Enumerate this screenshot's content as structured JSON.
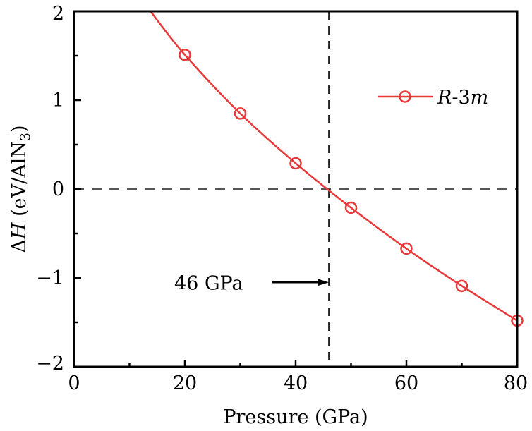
{
  "chart_data": {
    "type": "line",
    "title": "",
    "xlabel": "Pressure (GPa)",
    "ylabel_parts": {
      "delta": "Δ",
      "var": "H",
      "unit": " (eV/AlN",
      "sub": "3",
      "close": ")"
    },
    "ylabel": "ΔH (eV/AlN3)",
    "xlim": [
      0,
      80
    ],
    "ylim": [
      -2,
      2
    ],
    "xticks": [
      0,
      20,
      40,
      60,
      80
    ],
    "xtick_labels": [
      "0",
      "20",
      "40",
      "60",
      "80"
    ],
    "xminor": [
      10,
      30,
      50,
      70
    ],
    "yticks": [
      2,
      1,
      0,
      -1,
      -2
    ],
    "ytick_labels": [
      "2",
      "1",
      "0",
      "−1",
      "−2"
    ],
    "yminor": [
      1.5,
      0.5,
      -0.5,
      -1.5
    ],
    "grid": false,
    "legend_position": "top-right",
    "series": [
      {
        "name": "R-3m",
        "name_parts": {
          "italic1": "R",
          "plain": "-3",
          "italic2": "m"
        },
        "color": "#e8393a",
        "marker": "open-circle",
        "x": [
          20,
          30,
          40,
          50,
          60,
          70,
          80
        ],
        "y": [
          1.51,
          0.85,
          0.29,
          -0.21,
          -0.67,
          -1.09,
          -1.48
        ],
        "curve_start": [
          13.8,
          2.0
        ]
      }
    ],
    "reference_lines": {
      "horizontal_y": 0,
      "vertical_x": 46,
      "color": "#555555"
    },
    "annotation": {
      "text": "46 GPa",
      "arrow_to_x": 46,
      "y": -1.05
    }
  }
}
